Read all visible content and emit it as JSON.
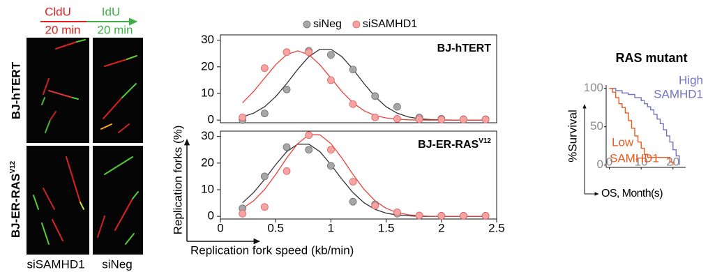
{
  "figure": {
    "dna_labels": {
      "cldu": "CldU",
      "idu": "IdU",
      "cldu_time": "20 min",
      "idu_time": "20 min"
    },
    "row_labels": [
      {
        "text": "BJ-hTERT"
      },
      {
        "text": "BJ-ER-RAS",
        "superscript": "V12"
      }
    ],
    "column_labels": [
      "siSAMHD1",
      "siNeg"
    ],
    "y_label": "Replication forks (%)",
    "x_label": "Replication fork speed (kb/min)"
  },
  "chart_data": [
    {
      "type": "scatter",
      "panel_label": {
        "text": "BJ-hTERT"
      },
      "xlim": [
        0,
        2.5
      ],
      "ylim": [
        -1,
        32
      ],
      "yticks": [
        0,
        10,
        20,
        30
      ],
      "series": [
        {
          "name": "siNeg",
          "color": "#a6a6a6",
          "edge_color": "#6e6e6e",
          "line_color": "#333333",
          "x": [
            0.2,
            0.4,
            0.6,
            0.8,
            1.0,
            1.2,
            1.4,
            1.6,
            1.8,
            2.0,
            2.2,
            2.4
          ],
          "values": [
            0,
            2.5,
            11.5,
            26,
            24.5,
            19,
            9,
            5,
            1,
            0.5,
            0.3,
            0.3
          ],
          "fit": {
            "x": [
              0.2,
              0.3,
              0.4,
              0.5,
              0.6,
              0.7,
              0.8,
              0.9,
              1.0,
              1.1,
              1.2,
              1.3,
              1.4,
              1.5,
              1.6,
              1.7,
              1.8,
              1.9,
              2.0,
              2.1,
              2.2,
              2.3,
              2.4
            ],
            "values": [
              1.2,
              2.6,
              5.0,
              8.8,
              13.7,
              19.1,
              23.8,
              26.6,
              26.6,
              23.8,
              19.1,
              13.7,
              8.8,
              5.0,
              2.6,
              1.2,
              0.5,
              0.2,
              0.1,
              0,
              0,
              0,
              0
            ]
          }
        },
        {
          "name": "siSAMHD1",
          "color": "#f6a3a3",
          "edge_color": "#e06060",
          "line_color": "#e8403a",
          "x": [
            0.2,
            0.4,
            0.6,
            0.8,
            1.0,
            1.2,
            1.4,
            1.6,
            1.8,
            2.0,
            2.2,
            2.4
          ],
          "values": [
            1,
            19.5,
            25.5,
            25.5,
            15,
            6,
            1,
            0.5,
            0.3,
            0.2,
            0.2,
            0.2
          ],
          "fit": {
            "x": [
              0.2,
              0.3,
              0.4,
              0.5,
              0.6,
              0.7,
              0.8,
              0.9,
              1.0,
              1.1,
              1.2,
              1.3,
              1.4,
              1.5,
              1.6,
              1.7,
              1.8,
              1.9,
              2.0,
              2.1,
              2.2,
              2.3,
              2.4
            ],
            "values": [
              6.5,
              10.7,
              15.8,
              20.8,
              24.6,
              26,
              24.6,
              20.8,
              15.8,
              10.7,
              6.5,
              3.5,
              1.7,
              0.8,
              0.3,
              0.1,
              0,
              0,
              0,
              0,
              0,
              0,
              0
            ]
          }
        }
      ]
    },
    {
      "type": "scatter",
      "panel_label": {
        "text": "BJ-ER-RAS",
        "superscript": "V12"
      },
      "xlim": [
        0,
        2.5
      ],
      "ylim": [
        -1,
        32
      ],
      "yticks": [
        0,
        10,
        20,
        30
      ],
      "xticks": [
        0,
        0.5,
        1,
        1.5,
        2,
        2.5
      ],
      "series": [
        {
          "color": "#a6a6a6",
          "edge_color": "#6e6e6e",
          "line_color": "#333333",
          "x": [
            0.2,
            0.4,
            0.6,
            0.8,
            1.0,
            1.2,
            1.4,
            1.6,
            1.8,
            2.0,
            2.2,
            2.4
          ],
          "values": [
            3,
            15,
            26,
            25,
            19,
            5.5,
            4.5,
            1,
            0.3,
            0.2,
            0.2,
            0.2
          ],
          "fit": {
            "x": [
              0.2,
              0.3,
              0.4,
              0.5,
              0.6,
              0.7,
              0.8,
              0.9,
              1.0,
              1.1,
              1.2,
              1.3,
              1.4,
              1.5,
              1.6,
              1.7,
              1.8,
              1.9,
              2.0,
              2.1,
              2.2,
              2.3,
              2.4
            ],
            "values": [
              5.1,
              8.9,
              13.9,
              19.4,
              24.3,
              27.1,
              27.1,
              24.3,
              19.4,
              13.9,
              8.9,
              5.1,
              2.6,
              1.2,
              0.5,
              0.2,
              0,
              0,
              0,
              0,
              0,
              0,
              0
            ]
          }
        },
        {
          "color": "#f6a3a3",
          "edge_color": "#e06060",
          "line_color": "#e8403a",
          "x": [
            0.2,
            0.4,
            0.6,
            0.8,
            1.0,
            1.2,
            1.4,
            1.6,
            1.8,
            2.0,
            2.2,
            2.4
          ],
          "values": [
            1,
            3.5,
            17,
            30.5,
            25,
            13,
            4,
            1.5,
            0.3,
            0.2,
            0.2,
            0.2
          ],
          "fit": {
            "x": [
              0.2,
              0.3,
              0.4,
              0.5,
              0.6,
              0.7,
              0.8,
              0.9,
              1.0,
              1.1,
              1.2,
              1.3,
              1.4,
              1.5,
              1.6,
              1.7,
              1.8,
              1.9,
              2.0,
              2.1,
              2.2,
              2.3,
              2.4
            ],
            "values": [
              3.0,
              5.8,
              10.1,
              15.7,
              21.9,
              27.3,
              30.6,
              30.6,
              27.3,
              21.9,
              15.7,
              10.1,
              5.8,
              3.0,
              1.4,
              0.6,
              0.2,
              0,
              0,
              0,
              0,
              0,
              0
            ]
          }
        }
      ]
    },
    {
      "type": "step",
      "title": "RAS mutant",
      "y_label": "%Survival",
      "x_label": "OS, Month(s)",
      "xlim": [
        -1,
        24
      ],
      "xticks": [
        0,
        10,
        20
      ],
      "ylim": [
        -3,
        117
      ],
      "yticks": [
        0,
        50,
        100
      ],
      "series": [
        {
          "name": [
            "High",
            "SAMHD1"
          ],
          "color": "#7373c4",
          "x": [
            0,
            2,
            4,
            6,
            8,
            10,
            11,
            12,
            13,
            14,
            15,
            16,
            17,
            18,
            19,
            20,
            21,
            22
          ],
          "values": [
            100,
            97,
            94,
            92,
            88,
            84,
            80,
            76,
            72,
            66,
            60,
            54,
            46,
            38,
            30,
            20,
            12,
            0
          ]
        },
        {
          "name": [
            "Low",
            "SAMHD1"
          ],
          "color": "#ea5a1e",
          "x": [
            0,
            1,
            2,
            3,
            4,
            5,
            6,
            7,
            8,
            9,
            10,
            11,
            12,
            18,
            19,
            20
          ],
          "values": [
            100,
            95,
            88,
            80,
            75,
            68,
            58,
            48,
            38,
            30,
            22,
            14,
            10,
            10,
            4,
            0
          ]
        }
      ]
    }
  ]
}
